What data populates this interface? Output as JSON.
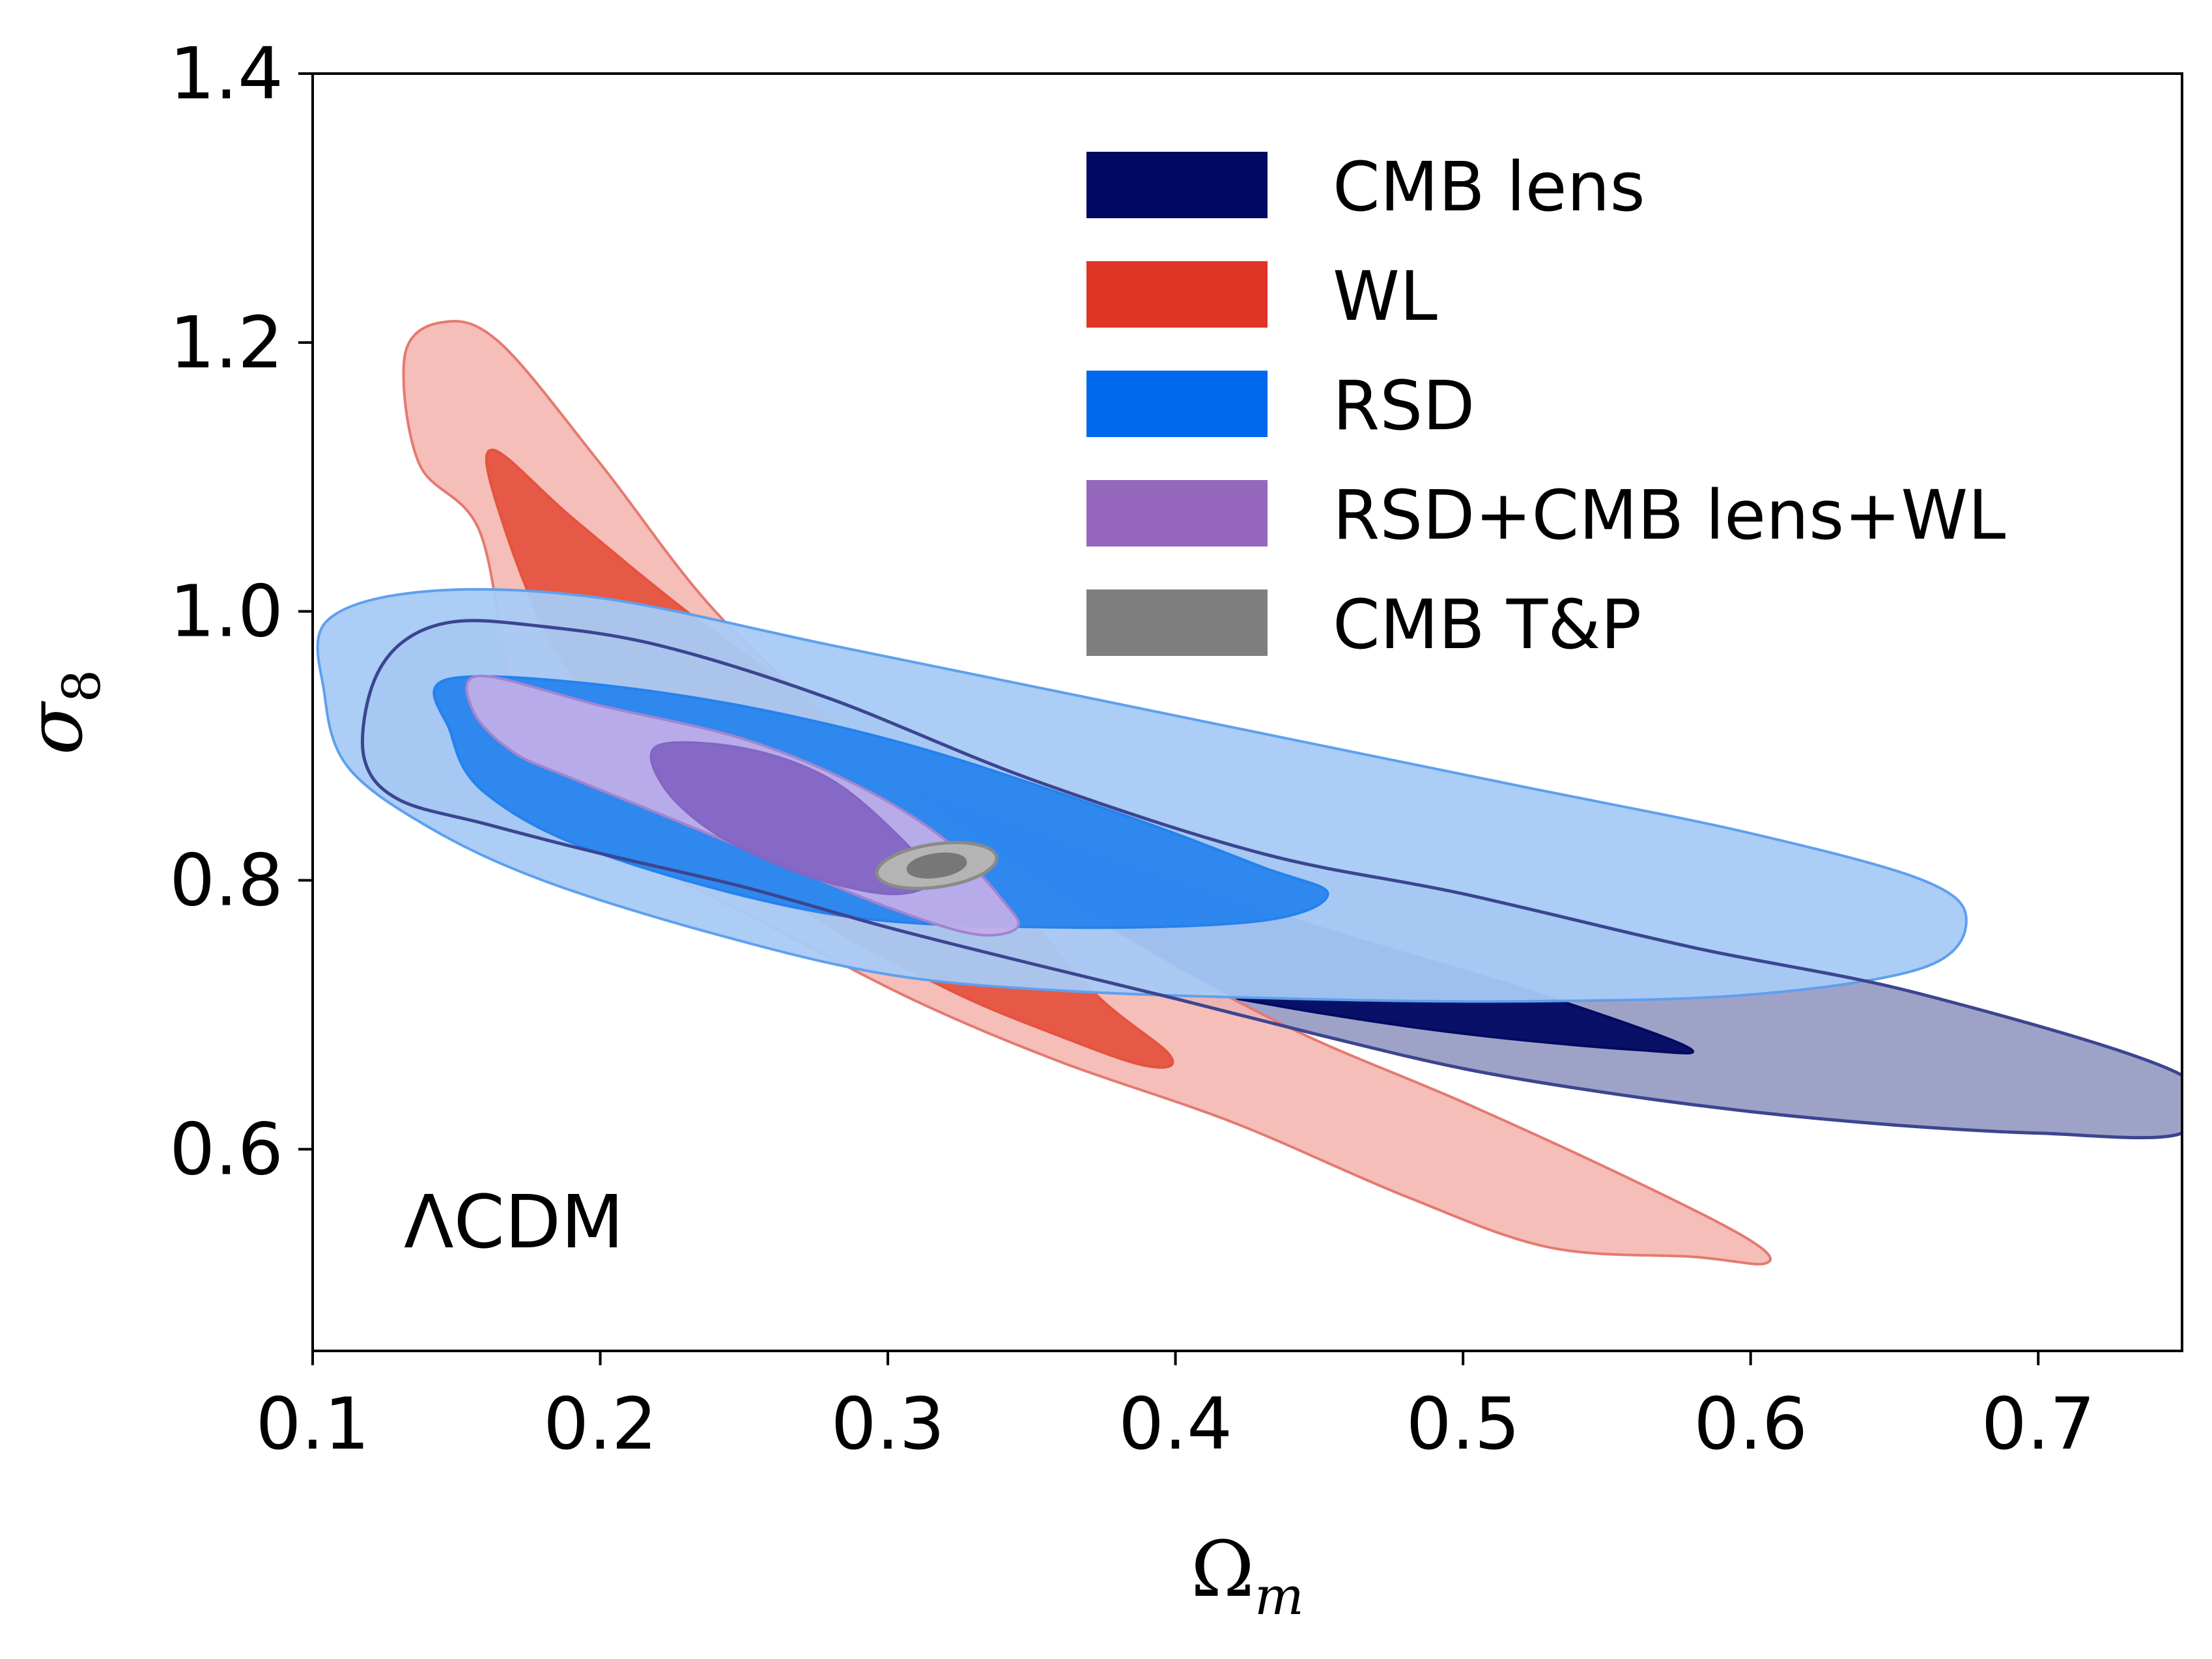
{
  "chart_data": {
    "type": "contour",
    "xlabel": "Ω",
    "xlabel_sub": "m",
    "ylabel": "σ",
    "ylabel_sub": "8",
    "xlim": [
      0.1,
      0.75
    ],
    "ylim": [
      0.45,
      1.4
    ],
    "xticks": [
      "0.1",
      "0.2",
      "0.3",
      "0.4",
      "0.5",
      "0.6",
      "0.7"
    ],
    "yticks": [
      "0.6",
      "0.8",
      "1.0",
      "1.2",
      "1.4"
    ],
    "legend_position": "top-right",
    "annotation": "ΛCDM",
    "series": [
      {
        "name": "CMB lens",
        "color": "#000a62",
        "contours": [
          {
            "level": "2sigma",
            "fill": "#9a9dc4",
            "stroke": "#3c4590",
            "points": [
              [
                0.148,
                0.992
              ],
              [
                0.175,
                0.99
              ],
              [
                0.22,
                0.975
              ],
              [
                0.28,
                0.935
              ],
              [
                0.35,
                0.875
              ],
              [
                0.43,
                0.82
              ],
              [
                0.5,
                0.79
              ],
              [
                0.58,
                0.75
              ],
              [
                0.66,
                0.715
              ],
              [
                0.75,
                0.655
              ],
              [
                0.75,
                0.612
              ],
              [
                0.7,
                0.612
              ],
              [
                0.65,
                0.618
              ],
              [
                0.6,
                0.628
              ],
              [
                0.55,
                0.642
              ],
              [
                0.5,
                0.66
              ],
              [
                0.45,
                0.685
              ],
              [
                0.4,
                0.712
              ],
              [
                0.35,
                0.738
              ],
              [
                0.3,
                0.765
              ],
              [
                0.25,
                0.795
              ],
              [
                0.2,
                0.82
              ],
              [
                0.16,
                0.842
              ],
              [
                0.13,
                0.86
              ],
              [
                0.118,
                0.89
              ],
              [
                0.12,
                0.94
              ],
              [
                0.13,
                0.975
              ]
            ]
          },
          {
            "level": "1sigma",
            "fill": "#000a62",
            "stroke": "#000a62",
            "points": [
              [
                0.162,
                0.95
              ],
              [
                0.22,
                0.93
              ],
              [
                0.3,
                0.875
              ],
              [
                0.38,
                0.815
              ],
              [
                0.45,
                0.765
              ],
              [
                0.52,
                0.72
              ],
              [
                0.578,
                0.676
              ],
              [
                0.56,
                0.674
              ],
              [
                0.5,
                0.686
              ],
              [
                0.44,
                0.705
              ],
              [
                0.38,
                0.73
              ],
              [
                0.32,
                0.765
              ],
              [
                0.26,
                0.815
              ],
              [
                0.2,
                0.86
              ],
              [
                0.17,
                0.895
              ],
              [
                0.158,
                0.925
              ]
            ]
          }
        ]
      },
      {
        "name": "WL",
        "color": "#e03424",
        "contours": [
          {
            "level": "2sigma",
            "fill": "#f4b7b1",
            "stroke": "#e47a70",
            "points": [
              [
                0.145,
                1.215
              ],
              [
                0.165,
                1.2
              ],
              [
                0.2,
                1.11
              ],
              [
                0.24,
                1.0
              ],
              [
                0.29,
                0.9
              ],
              [
                0.33,
                0.83
              ],
              [
                0.38,
                0.76
              ],
              [
                0.44,
                0.69
              ],
              [
                0.5,
                0.635
              ],
              [
                0.56,
                0.576
              ],
              [
                0.6,
                0.532
              ],
              [
                0.605,
                0.515
              ],
              [
                0.58,
                0.52
              ],
              [
                0.53,
                0.527
              ],
              [
                0.48,
                0.565
              ],
              [
                0.42,
                0.62
              ],
              [
                0.36,
                0.665
              ],
              [
                0.31,
                0.71
              ],
              [
                0.26,
                0.765
              ],
              [
                0.22,
                0.81
              ],
              [
                0.19,
                0.86
              ],
              [
                0.17,
                0.94
              ],
              [
                0.158,
                1.06
              ],
              [
                0.137,
                1.11
              ],
              [
                0.132,
                1.19
              ]
            ]
          },
          {
            "level": "1sigma",
            "fill": "#e5533f",
            "stroke": "#e5533f",
            "points": [
              [
                0.163,
                1.12
              ],
              [
                0.19,
                1.07
              ],
              [
                0.23,
                1.0
              ],
              [
                0.28,
                0.92
              ],
              [
                0.33,
                0.82
              ],
              [
                0.37,
                0.72
              ],
              [
                0.398,
                0.67
              ],
              [
                0.39,
                0.662
              ],
              [
                0.36,
                0.684
              ],
              [
                0.32,
                0.72
              ],
              [
                0.27,
                0.78
              ],
              [
                0.22,
                0.88
              ],
              [
                0.185,
                0.97
              ],
              [
                0.164,
                1.08
              ]
            ]
          }
        ]
      },
      {
        "name": "RSD",
        "color": "#0068ed",
        "contours": [
          {
            "level": "2sigma",
            "fill": "#a8caf5",
            "stroke": "#5ea0ee",
            "points": [
              [
                0.105,
                0.993
              ],
              [
                0.14,
                1.015
              ],
              [
                0.2,
                1.01
              ],
              [
                0.28,
                0.975
              ],
              [
                0.36,
                0.94
              ],
              [
                0.44,
                0.905
              ],
              [
                0.52,
                0.87
              ],
              [
                0.6,
                0.835
              ],
              [
                0.66,
                0.8
              ],
              [
                0.675,
                0.77
              ],
              [
                0.66,
                0.735
              ],
              [
                0.6,
                0.715
              ],
              [
                0.52,
                0.71
              ],
              [
                0.44,
                0.712
              ],
              [
                0.36,
                0.718
              ],
              [
                0.3,
                0.73
              ],
              [
                0.24,
                0.76
              ],
              [
                0.18,
                0.8
              ],
              [
                0.14,
                0.84
              ],
              [
                0.112,
                0.885
              ],
              [
                0.104,
                0.94
              ]
            ]
          },
          {
            "level": "1sigma",
            "fill": "#2482ee",
            "stroke": "#2482ee",
            "points": [
              [
                0.148,
                0.95
              ],
              [
                0.22,
                0.94
              ],
              [
                0.3,
                0.905
              ],
              [
                0.38,
                0.85
              ],
              [
                0.43,
                0.81
              ],
              [
                0.453,
                0.79
              ],
              [
                0.43,
                0.77
              ],
              [
                0.36,
                0.765
              ],
              [
                0.28,
                0.775
              ],
              [
                0.2,
                0.82
              ],
              [
                0.16,
                0.865
              ],
              [
                0.148,
                0.91
              ]
            ]
          }
        ]
      },
      {
        "name": "RSD+CMB lens+WL",
        "color": "#9467bd",
        "contours": [
          {
            "level": "2sigma",
            "fill": "#bfaee8",
            "stroke": "#a184d0",
            "points": [
              [
                0.158,
                0.952
              ],
              [
                0.2,
                0.93
              ],
              [
                0.25,
                0.905
              ],
              [
                0.29,
                0.87
              ],
              [
                0.32,
                0.83
              ],
              [
                0.34,
                0.785
              ],
              [
                0.345,
                0.765
              ],
              [
                0.33,
                0.76
              ],
              [
                0.3,
                0.78
              ],
              [
                0.26,
                0.815
              ],
              [
                0.22,
                0.85
              ],
              [
                0.19,
                0.876
              ],
              [
                0.17,
                0.895
              ],
              [
                0.156,
                0.925
              ]
            ]
          },
          {
            "level": "1sigma",
            "fill": "#8365c4",
            "stroke": "#8365c4",
            "points": [
              [
                0.22,
                0.9
              ],
              [
                0.25,
                0.898
              ],
              [
                0.28,
                0.875
              ],
              [
                0.305,
                0.83
              ],
              [
                0.315,
                0.8
              ],
              [
                0.3,
                0.79
              ],
              [
                0.27,
                0.805
              ],
              [
                0.24,
                0.835
              ],
              [
                0.222,
                0.87
              ]
            ]
          }
        ]
      },
      {
        "name": "CMB T&P",
        "color": "#7f7f7f",
        "contours": [
          {
            "level": "2sigma",
            "fill": "#b4b4b4",
            "stroke": "#8a8a8a",
            "ellipse": [
              0.317,
              0.811,
              0.021,
              0.016,
              -8
            ]
          },
          {
            "level": "1sigma",
            "fill": "#777777",
            "stroke": "#777777",
            "ellipse": [
              0.317,
              0.811,
              0.01,
              0.008,
              -8
            ]
          }
        ]
      }
    ]
  }
}
